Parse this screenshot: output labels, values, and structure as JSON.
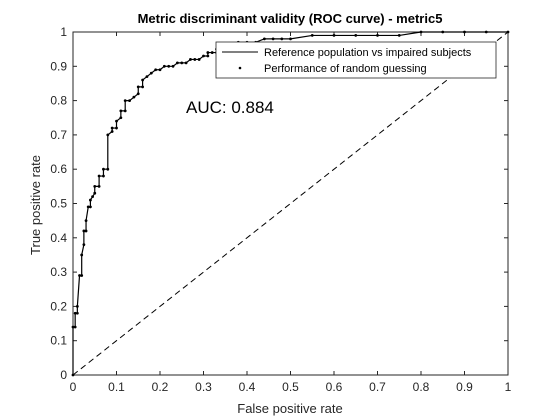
{
  "chart_data": {
    "type": "line",
    "title": "Metric discriminant validity (ROC curve) - metric5",
    "xlabel": "False positive rate",
    "ylabel": "True positive rate",
    "xlim": [
      0,
      1
    ],
    "ylim": [
      0,
      1
    ],
    "xticks": [
      "0",
      "0.1",
      "0.2",
      "0.3",
      "0.4",
      "0.5",
      "0.6",
      "0.7",
      "0.8",
      "0.9",
      "1"
    ],
    "yticks": [
      "0",
      "0.1",
      "0.2",
      "0.3",
      "0.4",
      "0.5",
      "0.6",
      "0.7",
      "0.8",
      "0.9",
      "1"
    ],
    "grid": false,
    "legend_position": "top-right",
    "annotation": "AUC: 0.884",
    "series": [
      {
        "name": "Reference population vs impaired subjects",
        "style": "solid line with dot markers",
        "color": "#000000",
        "x": [
          0,
          0,
          0.005,
          0.005,
          0.01,
          0.01,
          0.015,
          0.02,
          0.02,
          0.025,
          0.025,
          0.03,
          0.03,
          0.035,
          0.04,
          0.04,
          0.045,
          0.05,
          0.05,
          0.06,
          0.06,
          0.07,
          0.07,
          0.08,
          0.08,
          0.09,
          0.09,
          0.1,
          0.1,
          0.11,
          0.11,
          0.12,
          0.12,
          0.13,
          0.14,
          0.15,
          0.15,
          0.16,
          0.16,
          0.17,
          0.18,
          0.19,
          0.2,
          0.21,
          0.22,
          0.23,
          0.24,
          0.25,
          0.26,
          0.27,
          0.28,
          0.29,
          0.3,
          0.31,
          0.31,
          0.32,
          0.33,
          0.33,
          0.34,
          0.35,
          0.36,
          0.38,
          0.4,
          0.42,
          0.44,
          0.46,
          0.48,
          0.5,
          0.55,
          0.6,
          0.65,
          0.7,
          0.75,
          0.8,
          0.85,
          0.9,
          0.95,
          1.0
        ],
        "y": [
          0,
          0.14,
          0.14,
          0.18,
          0.18,
          0.2,
          0.29,
          0.29,
          0.35,
          0.38,
          0.42,
          0.42,
          0.45,
          0.49,
          0.49,
          0.51,
          0.52,
          0.53,
          0.55,
          0.55,
          0.58,
          0.58,
          0.6,
          0.6,
          0.7,
          0.71,
          0.72,
          0.72,
          0.74,
          0.75,
          0.77,
          0.77,
          0.8,
          0.8,
          0.81,
          0.82,
          0.84,
          0.84,
          0.86,
          0.87,
          0.88,
          0.89,
          0.89,
          0.9,
          0.9,
          0.9,
          0.91,
          0.91,
          0.91,
          0.92,
          0.92,
          0.92,
          0.93,
          0.93,
          0.94,
          0.94,
          0.94,
          0.95,
          0.95,
          0.96,
          0.96,
          0.97,
          0.97,
          0.97,
          0.98,
          0.98,
          0.98,
          0.98,
          0.99,
          0.99,
          0.99,
          0.99,
          0.99,
          1.0,
          1.0,
          1.0,
          1.0,
          1.0
        ]
      },
      {
        "name": "Performance of random guessing",
        "style": "dashed line",
        "color": "#000000",
        "x": [
          0,
          1
        ],
        "y": [
          0,
          1
        ]
      }
    ]
  }
}
